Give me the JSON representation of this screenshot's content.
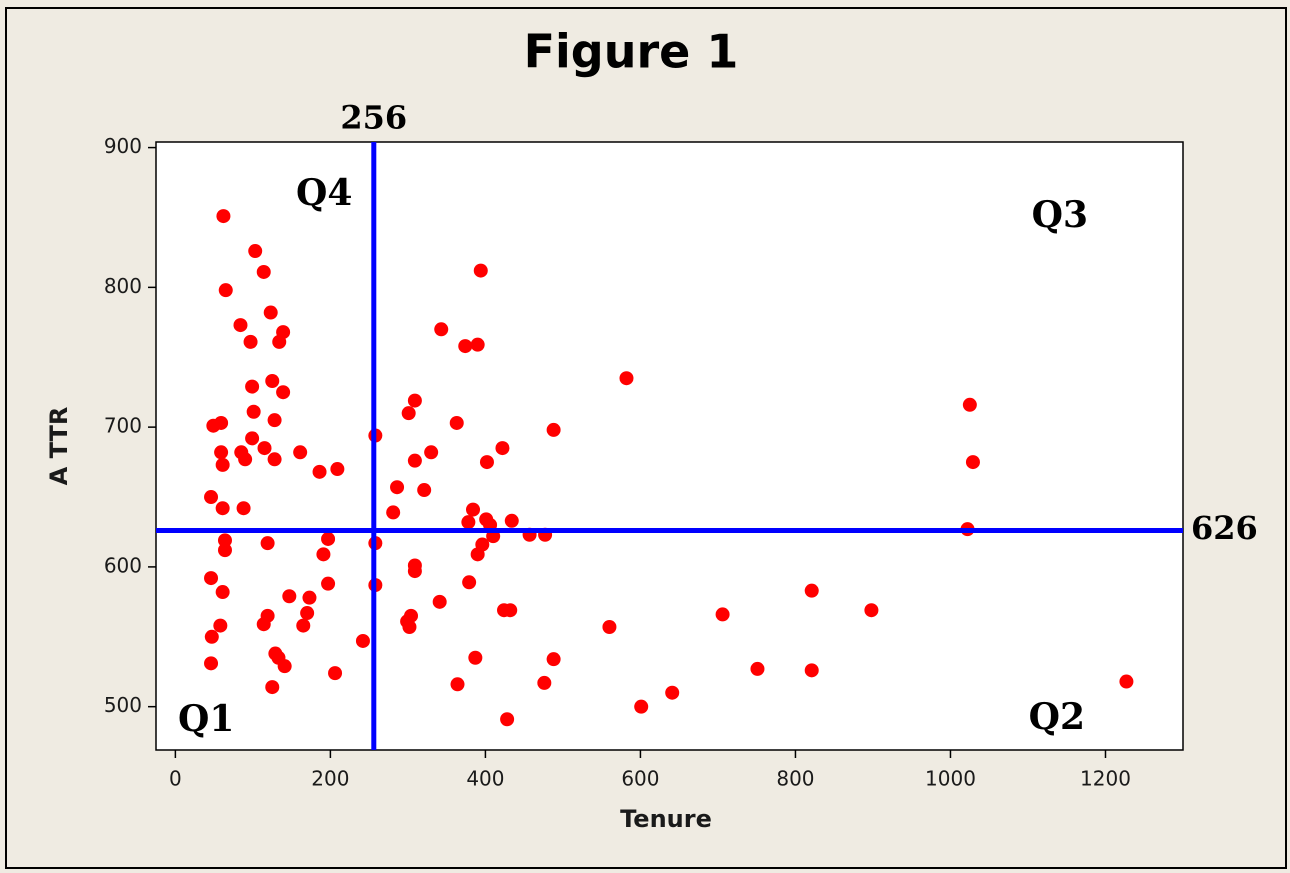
{
  "chart_data": {
    "type": "scatter",
    "title": "Figure 1",
    "x_label": "Tenure",
    "y_label": "A TTR",
    "color": "#ff0000",
    "line_color": "#0000ff",
    "vline": 256,
    "hline": 626,
    "annotations": [
      "Q1",
      "Q2",
      "Q3",
      "Q4"
    ],
    "xlim": [
      -25,
      1300
    ],
    "ylim": [
      469,
      904
    ],
    "xticks": [
      0,
      200,
      400,
      600,
      800,
      1000,
      1200
    ],
    "yticks": [
      500,
      600,
      700,
      800,
      900
    ],
    "x": [
      62,
      103,
      114,
      65,
      84,
      123,
      139,
      97,
      134,
      99,
      125,
      139,
      101,
      128,
      49,
      59,
      99,
      115,
      59,
      61,
      85,
      90,
      128,
      161,
      186,
      209,
      46,
      61,
      88,
      64,
      64,
      119,
      197,
      191,
      197,
      46,
      61,
      47,
      58,
      46,
      114,
      119,
      147,
      173,
      170,
      165,
      129,
      133,
      141,
      125,
      206,
      242,
      258,
      258,
      258,
      281,
      286,
      301,
      309,
      309,
      321,
      330,
      309,
      309,
      299,
      304,
      302,
      343,
      363,
      341,
      364,
      374,
      390,
      394,
      378,
      384,
      379,
      390,
      396,
      401,
      406,
      410,
      402,
      422,
      434,
      457,
      477,
      387,
      424,
      432,
      428,
      476,
      488,
      488,
      582,
      560,
      601,
      641,
      706,
      751,
      821,
      821,
      898,
      1025,
      1029,
      1022,
      1227
    ],
    "values": [
      851,
      826,
      811,
      798,
      773,
      782,
      768,
      761,
      761,
      729,
      733,
      725,
      711,
      705,
      701,
      703,
      692,
      685,
      682,
      673,
      682,
      677,
      677,
      682,
      668,
      670,
      650,
      642,
      642,
      619,
      612,
      617,
      620,
      609,
      588,
      592,
      582,
      550,
      558,
      531,
      559,
      565,
      579,
      578,
      567,
      558,
      538,
      535,
      529,
      514,
      524,
      547,
      694,
      617,
      587,
      639,
      657,
      710,
      719,
      676,
      655,
      682,
      601,
      597,
      561,
      565,
      557,
      770,
      703,
      575,
      516,
      758,
      759,
      812,
      632,
      641,
      589,
      609,
      616,
      634,
      630,
      622,
      675,
      685,
      633,
      623,
      623,
      535,
      569,
      569,
      491,
      517,
      534,
      698,
      735,
      557,
      500,
      510,
      566,
      527,
      583,
      526,
      569,
      716,
      675,
      627,
      518
    ]
  }
}
